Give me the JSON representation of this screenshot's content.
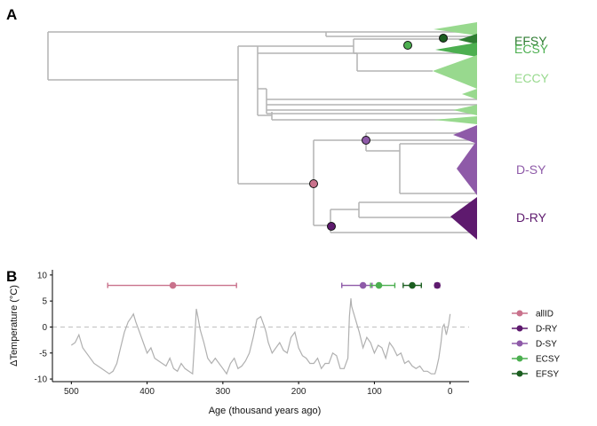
{
  "panel_a": {
    "label": "A",
    "clades": [
      {
        "name": "EFSY",
        "color": "#2e7d32"
      },
      {
        "name": "ECSY",
        "color": "#4caf50"
      },
      {
        "name": "ECCY",
        "color": "#98d98e"
      },
      {
        "name": "D-SY",
        "color": "#8e5aa8"
      },
      {
        "name": "D-RY",
        "color": "#5e1a6e"
      }
    ],
    "node_colors": {
      "allID": "#c9728c",
      "D-RY": "#5e1a6e",
      "D-SY": "#8e5aa8",
      "ECSY": "#4caf50",
      "EFSY": "#1b5e20"
    },
    "branch_color": "#b3b3b3"
  },
  "panel_b": {
    "label": "B"
  },
  "chart_data": {
    "type": "line",
    "xlabel": "Age (thousand years ago)",
    "ylabel": "ΔTemperature (°C)",
    "xlim": [
      525,
      -25
    ],
    "ylim": [
      -10.5,
      11
    ],
    "x_ticks": [
      500,
      400,
      300,
      200,
      100,
      0
    ],
    "y_ticks": [
      10,
      5,
      0,
      -5,
      -10
    ],
    "reference_line": {
      "y": 0,
      "style": "dashed",
      "color": "#c8c8c8"
    },
    "temperature_color": "#b0b0b0",
    "temperature_series": {
      "name": "",
      "x": [
        500,
        495,
        490,
        485,
        480,
        470,
        460,
        450,
        445,
        440,
        435,
        430,
        425,
        420,
        418,
        415,
        410,
        405,
        400,
        395,
        390,
        385,
        380,
        375,
        370,
        365,
        360,
        355,
        350,
        345,
        340,
        337,
        335,
        333,
        330,
        325,
        320,
        315,
        310,
        300,
        295,
        290,
        285,
        280,
        275,
        270,
        265,
        260,
        255,
        250,
        245,
        243,
        240,
        235,
        230,
        225,
        220,
        215,
        210,
        205,
        200,
        195,
        190,
        185,
        180,
        175,
        170,
        165,
        160,
        155,
        150,
        145,
        140,
        135,
        133,
        131,
        130,
        128,
        125,
        120,
        115,
        110,
        105,
        100,
        95,
        90,
        85,
        80,
        75,
        70,
        65,
        60,
        55,
        50,
        45,
        40,
        35,
        30,
        25,
        20,
        18,
        15,
        12,
        10,
        8,
        5,
        2,
        0
      ],
      "y": [
        -3.5,
        -3,
        -1.5,
        -4,
        -5,
        -7,
        -8,
        -9,
        -8.5,
        -7,
        -4,
        -1,
        1,
        2,
        2.5,
        1,
        -1,
        -3,
        -5,
        -4,
        -6,
        -6.5,
        -7,
        -7.5,
        -6,
        -8,
        -8.5,
        -7,
        -8,
        -8.5,
        -9,
        -2,
        3.5,
        2,
        -0.5,
        -3,
        -6,
        -7,
        -6,
        -8,
        -9,
        -7,
        -6,
        -8,
        -7.5,
        -6.5,
        -5,
        -2,
        1.5,
        2,
        0,
        -1,
        -3,
        -5,
        -4,
        -3,
        -4.5,
        -5,
        -2,
        -1,
        -4,
        -5.5,
        -6,
        -7,
        -7,
        -6,
        -8,
        -7,
        -7,
        -5,
        -5.5,
        -8,
        -8,
        -6,
        2,
        5.5,
        4,
        3,
        1.5,
        -1,
        -4,
        -2,
        -3,
        -5,
        -3.5,
        -4,
        -6,
        -3,
        -4,
        -5.5,
        -5,
        -7,
        -6.5,
        -7.5,
        -8,
        -7.5,
        -8.5,
        -8.5,
        -9,
        -9,
        -8,
        -6,
        -3,
        0,
        0.5,
        -1.5,
        0.5,
        2.5
      ]
    },
    "divergence_estimates": [
      {
        "name": "allID",
        "value": 366,
        "ci": [
          452,
          282
        ],
        "y": 8,
        "color": "#c9728c"
      },
      {
        "name": "D-RY",
        "value": 17,
        "ci": [
          20,
          14
        ],
        "y": 8,
        "color": "#5e1a6e"
      },
      {
        "name": "D-SY",
        "value": 115,
        "ci": [
          143,
          103
        ],
        "y": 8,
        "color": "#8e5aa8"
      },
      {
        "name": "ECSY",
        "value": 94,
        "ci": [
          105,
          73
        ],
        "y": 8,
        "color": "#4caf50"
      },
      {
        "name": "EFSY",
        "value": 50,
        "ci": [
          62,
          38
        ],
        "y": 8,
        "color": "#1b5e20"
      }
    ],
    "legend": {
      "placement": "right",
      "entries": [
        "allID",
        "D-RY",
        "D-SY",
        "ECSY",
        "EFSY"
      ]
    }
  }
}
